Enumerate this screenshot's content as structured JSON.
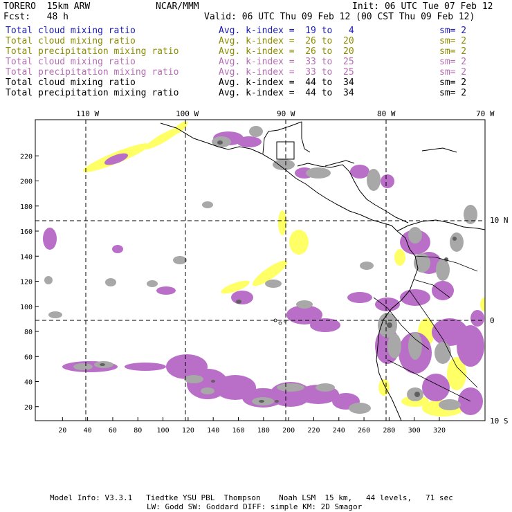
{
  "header": {
    "model": "TORERO  15km ARW",
    "org": "NCAR/MMM",
    "init": "Init: 06 UTC Tue 07 Feb 12",
    "fcst": "Fcst:   48 h",
    "valid": "Valid: 06 UTC Thu 09 Feb 12 (00 CST Thu 09 Feb 12)"
  },
  "legend": [
    {
      "field": "Total cloud mixing ratio",
      "kindex": "Avg. k-index =  19 to   4",
      "sm": "sm= 2",
      "color": "#1a1ab4"
    },
    {
      "field": "Total cloud mixing ratio",
      "kindex": "Avg. k-index =  26 to  20",
      "sm": "sm= 2",
      "color": "#8c8c00"
    },
    {
      "field": "Total precipitation mixing ratio",
      "kindex": "Avg. k-index =  26 to  20",
      "sm": "sm= 2",
      "color": "#8c8c00"
    },
    {
      "field": "Total cloud mixing ratio",
      "kindex": "Avg. k-index =  33 to  25",
      "sm": "sm= 2",
      "color": "#b46eb4"
    },
    {
      "field": "Total precipitation mixing ratio",
      "kindex": "Avg. k-index =  33 to  25",
      "sm": "sm= 2",
      "color": "#b46eb4"
    },
    {
      "field": "Total cloud mixing ratio",
      "kindex": "Avg. k-index =  44 to  34",
      "sm": "sm= 2",
      "color": "#000000"
    },
    {
      "field": "Total precipitation mixing ratio",
      "kindex": "Avg. k-index =  44 to  34",
      "sm": "sm= 2",
      "color": "#000000"
    }
  ],
  "map": {
    "colors": {
      "yellow": "#ffff66",
      "purple": "#b96ec8",
      "gray": "#a8a8a8",
      "darkgray": "#606060",
      "coast": "#000000"
    },
    "lon_labels": [
      "110 W",
      "100 W",
      "90 W",
      "80 W",
      "70 W"
    ],
    "lat_labels": [
      "10 N",
      "0",
      "10 S"
    ],
    "y_ticks": [
      20,
      40,
      60,
      80,
      100,
      120,
      140,
      160,
      180,
      200,
      220
    ],
    "x_ticks": [
      20,
      40,
      60,
      80,
      100,
      120,
      140,
      160,
      180,
      200,
      220,
      240,
      260,
      280,
      300,
      320
    ]
  },
  "footer": {
    "line1": "Model Info: V3.3.1   Tiedtke YSU PBL  Thompson    Noah LSM  15 km,   44 levels,   71 sec",
    "line2": "LW: Godd SW: Goddard DIFF: simple KM: 2D Smagor"
  }
}
